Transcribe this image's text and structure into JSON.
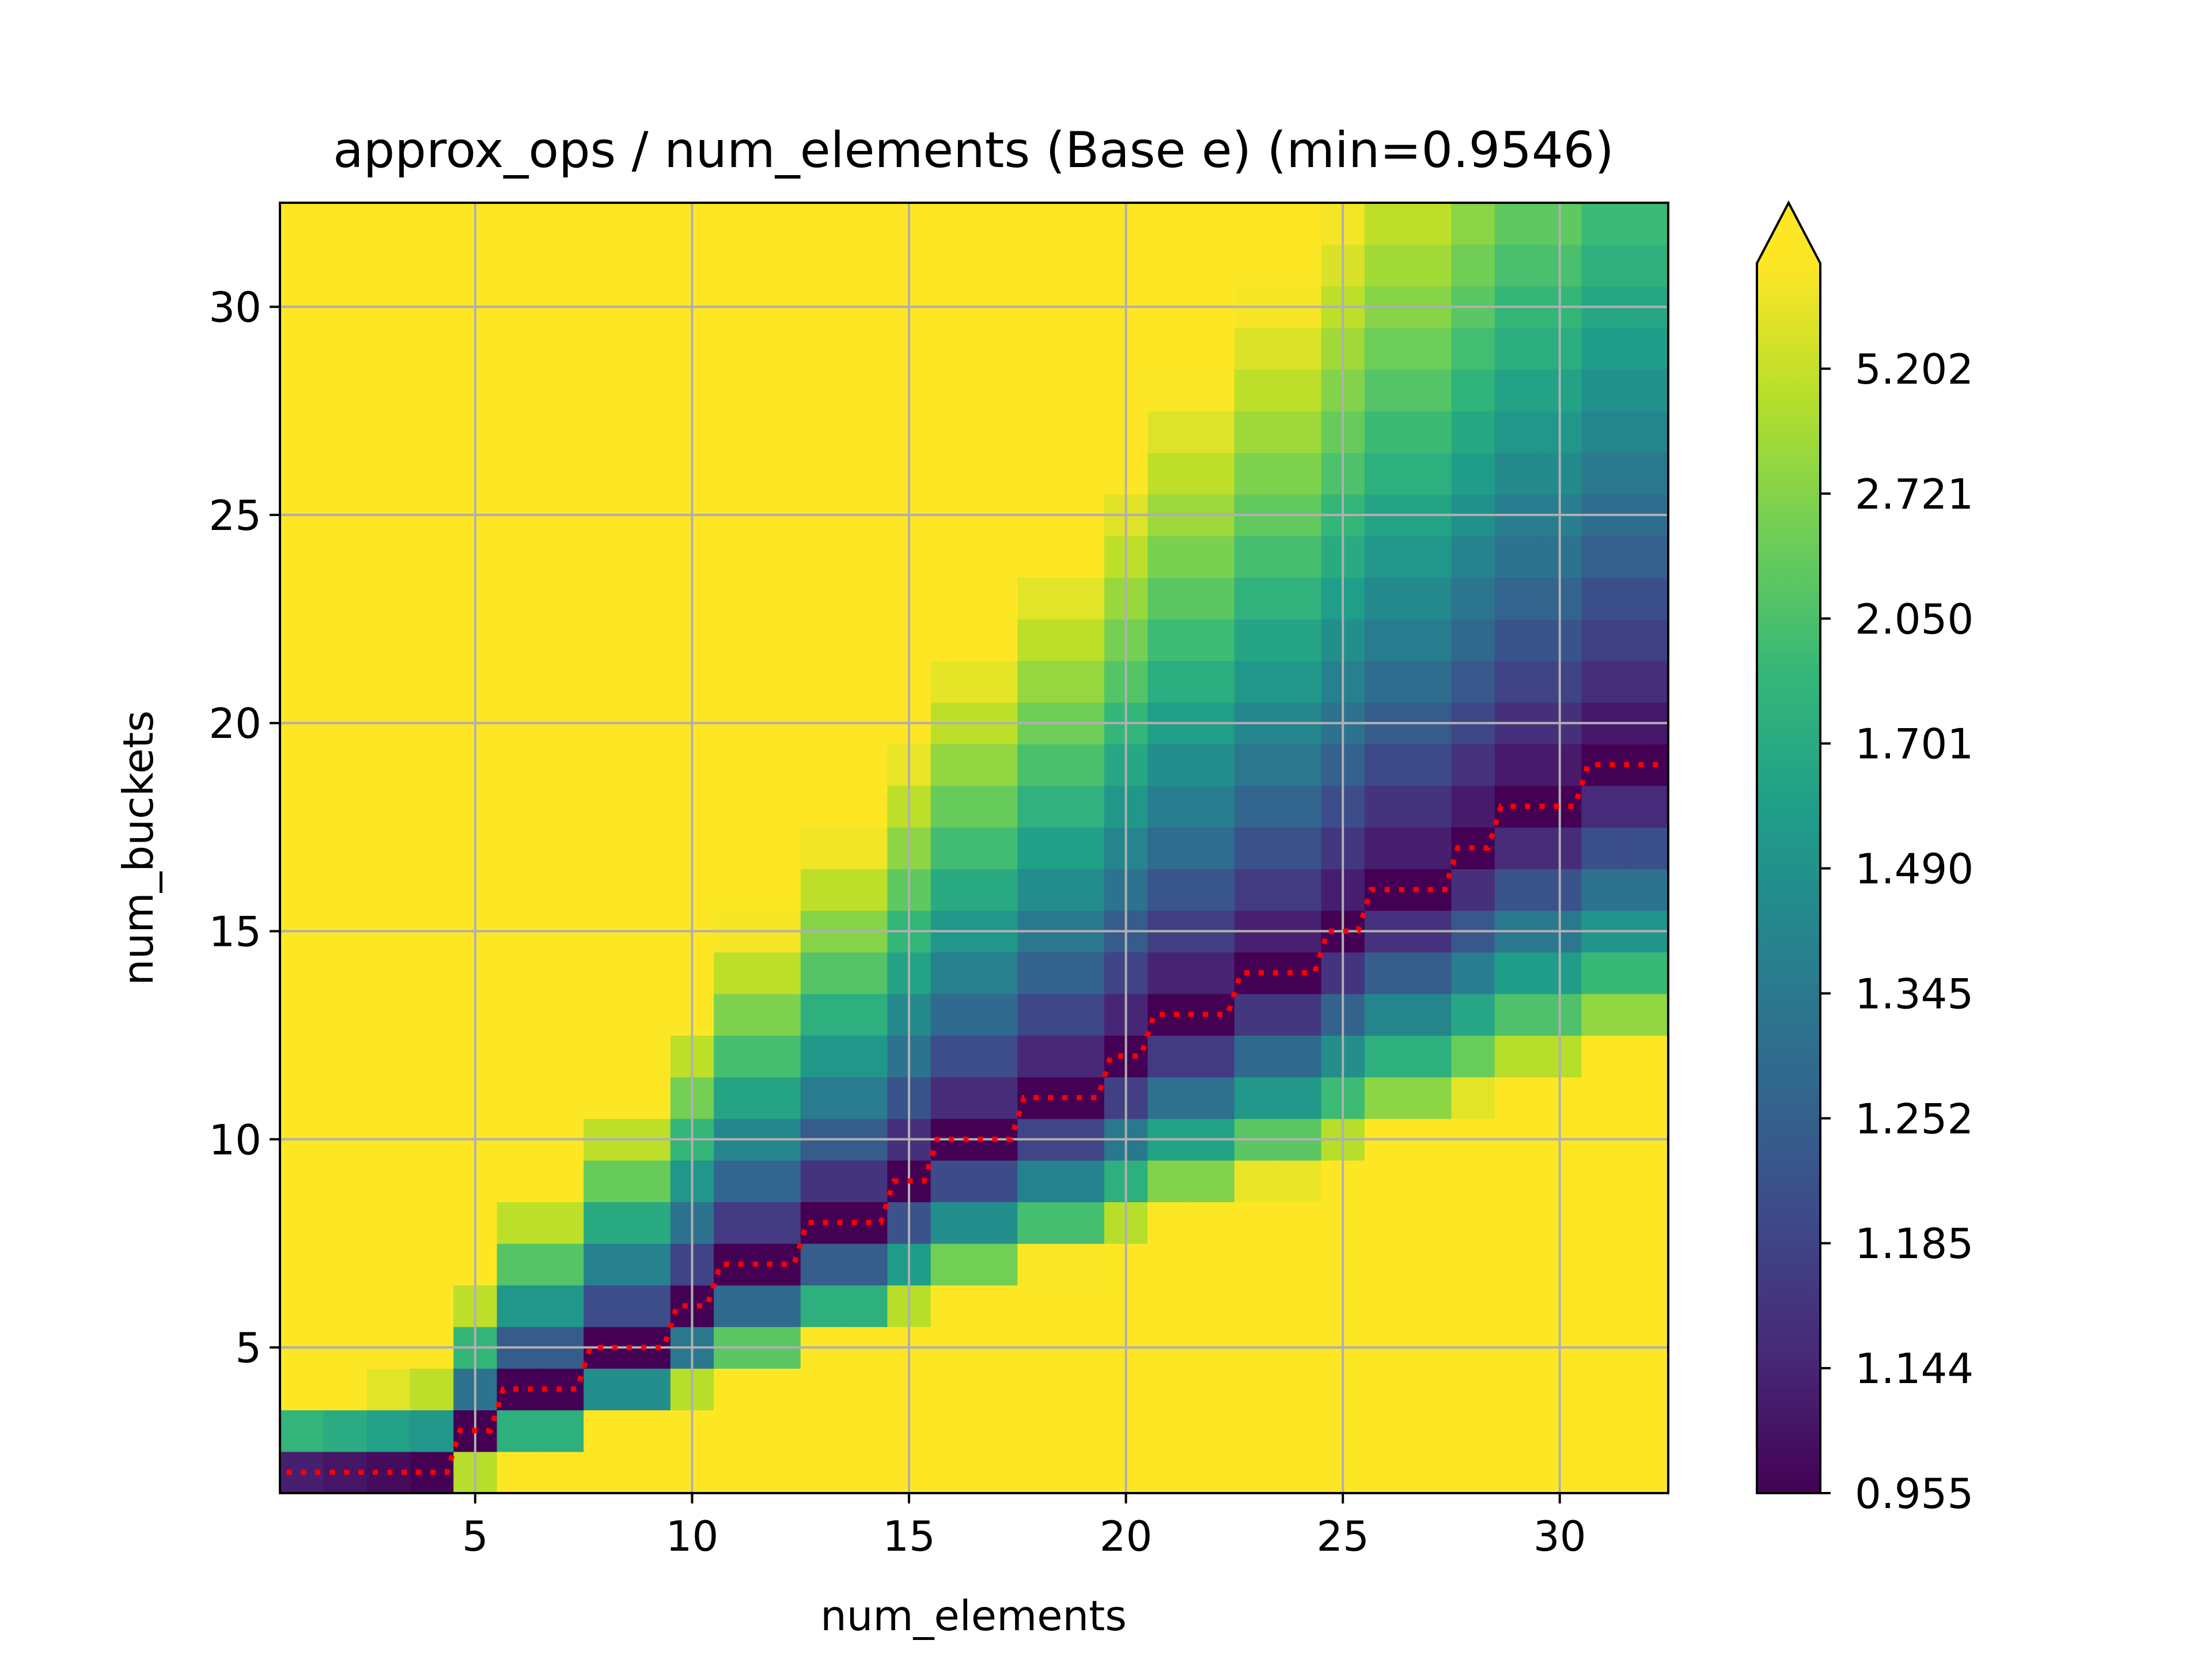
{
  "chart_data": {
    "type": "heatmap",
    "title": "approx_ops / num_elements (Base e) (min=0.9546)",
    "xlabel": "num_elements",
    "ylabel": "num_buckets",
    "xlim": [
      0.5,
      32.5
    ],
    "ylim": [
      1.5,
      32.5
    ],
    "x_ticks": [
      5,
      10,
      15,
      20,
      25,
      30
    ],
    "y_ticks": [
      5,
      10,
      15,
      20,
      25,
      30
    ],
    "x_range": [
      1,
      32
    ],
    "y_range": [
      2,
      32
    ],
    "grid": true,
    "colormap": "viridis",
    "colorbar": {
      "ticks": [
        "0.955",
        "1.144",
        "1.185",
        "1.252",
        "1.345",
        "1.490",
        "1.701",
        "2.050",
        "2.721",
        "5.202"
      ],
      "extend": "max"
    },
    "min_path": {
      "color": "#ff0000",
      "style": "dotted",
      "points": [
        [
          1,
          2
        ],
        [
          2,
          2
        ],
        [
          3,
          2
        ],
        [
          4,
          2
        ],
        [
          5,
          3
        ],
        [
          6,
          4
        ],
        [
          7,
          4
        ],
        [
          8,
          5
        ],
        [
          9,
          5
        ],
        [
          10,
          6
        ],
        [
          11,
          7
        ],
        [
          12,
          7
        ],
        [
          13,
          8
        ],
        [
          14,
          8
        ],
        [
          15,
          9
        ],
        [
          16,
          10
        ],
        [
          17,
          10
        ],
        [
          18,
          11
        ],
        [
          19,
          11
        ],
        [
          20,
          12
        ],
        [
          21,
          13
        ],
        [
          22,
          13
        ],
        [
          23,
          14
        ],
        [
          24,
          14
        ],
        [
          25,
          15
        ],
        [
          26,
          16
        ],
        [
          27,
          16
        ],
        [
          28,
          17
        ],
        [
          29,
          18
        ],
        [
          30,
          18
        ],
        [
          31,
          19
        ],
        [
          32,
          19
        ]
      ]
    }
  }
}
